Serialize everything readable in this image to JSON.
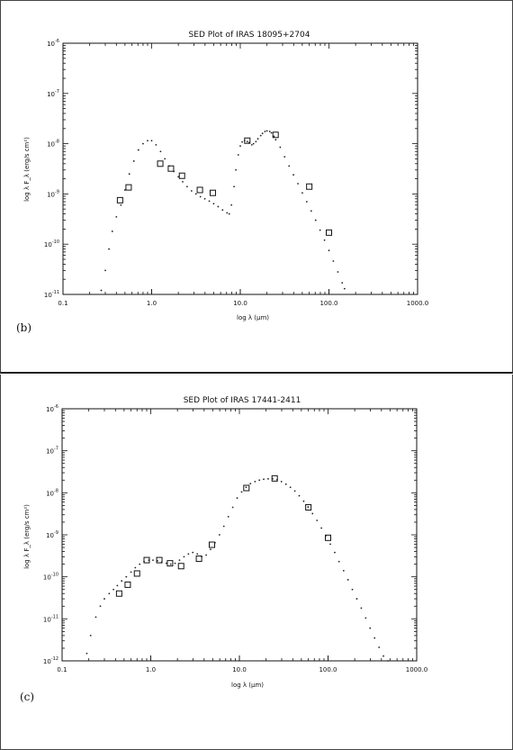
{
  "chart_data": [
    {
      "type": "scatter",
      "panel_label": "(b)",
      "title": "SED Plot of IRAS 18095+2704",
      "xlabel": "log λ (μm)",
      "ylabel": "log λ F_λ (erg/s cm²)",
      "x_scale": "log",
      "y_scale": "log",
      "xlim": [
        0.1,
        1000.0
      ],
      "ylim": [
        1e-11,
        1e-06
      ],
      "x_ticks": [
        {
          "value": 0.1,
          "label": "0.1"
        },
        {
          "value": 1.0,
          "label": "1.0"
        },
        {
          "value": 10.0,
          "label": "10.0"
        },
        {
          "value": 100.0,
          "label": "100.0"
        },
        {
          "value": 1000.0,
          "label": "1000.0"
        }
      ],
      "y_ticks": [
        {
          "value": 1e-11,
          "base": "10",
          "exp": "-11"
        },
        {
          "value": 1e-10,
          "base": "10",
          "exp": "-10"
        },
        {
          "value": 1e-09,
          "base": "10",
          "exp": "-9"
        },
        {
          "value": 1e-08,
          "base": "10",
          "exp": "-8"
        },
        {
          "value": 1e-07,
          "base": "10",
          "exp": "-7"
        },
        {
          "value": 1e-06,
          "base": "10",
          "exp": "-6"
        }
      ],
      "grid": false,
      "series": [
        {
          "marker": "square",
          "x": [
            0.44,
            0.55,
            1.25,
            1.65,
            2.2,
            3.5,
            4.9,
            12,
            25,
            60,
            100
          ],
          "y": [
            7.5e-10,
            1.35e-09,
            4e-09,
            3.2e-09,
            2.3e-09,
            1.2e-09,
            1.05e-09,
            1.15e-08,
            1.5e-08,
            1.4e-09,
            1.7e-10
          ]
        },
        {
          "marker": "dot",
          "x": [
            0.27,
            0.3,
            0.33,
            0.36,
            0.4,
            0.45,
            0.5,
            0.56,
            0.63,
            0.71,
            0.8,
            0.9,
            1.0,
            1.12,
            1.26,
            1.41,
            1.58,
            1.78,
            2.0,
            2.24,
            2.51,
            2.82,
            3.16,
            3.55,
            3.98,
            4.47,
            5.01,
            5.62,
            6.31,
            7.08,
            7.5,
            7.94,
            8.5,
            8.91,
            9.5,
            10.0,
            10.5,
            11.2,
            12.0,
            12.6,
            13.5,
            14.1,
            15.0,
            15.8,
            17.0,
            17.8,
            19.0,
            20.0,
            21.5,
            22.4,
            24.0,
            25.1,
            28.2,
            31.6,
            35.5,
            39.8,
            44.7,
            50.1,
            56.2,
            63.1,
            70.8,
            79.4,
            89.1,
            100,
            112,
            126,
            141,
            150
          ],
          "y": [
            1.2e-11,
            3e-11,
            8e-11,
            1.8e-10,
            3.5e-10,
            6e-10,
            1.2e-09,
            2.5e-09,
            4.5e-09,
            7.5e-09,
            1e-08,
            1.15e-08,
            1.15e-08,
            9.5e-09,
            7e-09,
            5e-09,
            3.6e-09,
            2.8e-09,
            2.2e-09,
            1.75e-09,
            1.4e-09,
            1.15e-09,
            1e-09,
            8.8e-10,
            8e-10,
            7.2e-10,
            6.4e-10,
            5.6e-10,
            4.8e-10,
            4.2e-10,
            4e-10,
            6e-10,
            1.4e-09,
            3e-09,
            6e-09,
            9e-09,
            1.08e-08,
            1.15e-08,
            1.1e-08,
            1.05e-08,
            9.5e-09,
            1e-08,
            1.1e-08,
            1.25e-08,
            1.45e-08,
            1.6e-08,
            1.75e-08,
            1.8e-08,
            1.75e-08,
            1.65e-08,
            1.4e-08,
            1.2e-08,
            8.5e-09,
            5.5e-09,
            3.6e-09,
            2.4e-09,
            1.6e-09,
            1.05e-09,
            7e-10,
            4.6e-10,
            3e-10,
            1.9e-10,
            1.2e-10,
            7.5e-11,
            4.6e-11,
            2.8e-11,
            1.7e-11,
            1.3e-11
          ]
        }
      ]
    },
    {
      "type": "scatter",
      "panel_label": "(c)",
      "title": "SED Plot of IRAS 17441-2411",
      "xlabel": "log λ (μm)",
      "ylabel": "log λ F_λ (erg/s cm²)",
      "x_scale": "log",
      "y_scale": "log",
      "xlim": [
        0.1,
        1000.0
      ],
      "ylim": [
        1e-12,
        1e-06
      ],
      "x_ticks": [
        {
          "value": 0.1,
          "label": "0.1"
        },
        {
          "value": 1.0,
          "label": "1.0"
        },
        {
          "value": 10.0,
          "label": "10.0"
        },
        {
          "value": 100.0,
          "label": "100.0"
        },
        {
          "value": 1000.0,
          "label": "1000.0"
        }
      ],
      "y_ticks": [
        {
          "value": 1e-12,
          "base": "10",
          "exp": "-12"
        },
        {
          "value": 1e-11,
          "base": "10",
          "exp": "-11"
        },
        {
          "value": 1e-10,
          "base": "10",
          "exp": "-10"
        },
        {
          "value": 1e-09,
          "base": "10",
          "exp": "-9"
        },
        {
          "value": 1e-08,
          "base": "10",
          "exp": "-8"
        },
        {
          "value": 1e-07,
          "base": "10",
          "exp": "-7"
        },
        {
          "value": 1e-06,
          "base": "10",
          "exp": "-6"
        }
      ],
      "grid": false,
      "series": [
        {
          "marker": "square",
          "x": [
            0.44,
            0.55,
            0.7,
            0.9,
            1.25,
            1.65,
            2.2,
            3.5,
            4.9,
            12,
            25,
            60,
            100
          ],
          "y": [
            4e-11,
            6.5e-11,
            1.2e-10,
            2.5e-10,
            2.5e-10,
            2.1e-10,
            1.8e-10,
            2.7e-10,
            5.8e-10,
            1.3e-08,
            2.2e-08,
            4.5e-09,
            8.5e-10
          ]
        },
        {
          "marker": "dot",
          "x": [
            0.19,
            0.21,
            0.24,
            0.27,
            0.3,
            0.34,
            0.38,
            0.42,
            0.47,
            0.53,
            0.6,
            0.67,
            0.75,
            0.84,
            0.95,
            1.06,
            1.19,
            1.33,
            1.5,
            1.68,
            1.88,
            2.11,
            2.37,
            2.66,
            2.98,
            3.35,
            3.76,
            4.22,
            4.73,
            5.31,
            5.96,
            6.68,
            7.5,
            8.41,
            9.44,
            10.6,
            11.9,
            13.3,
            15.0,
            16.8,
            18.8,
            21.1,
            23.7,
            26.6,
            29.8,
            33.5,
            37.6,
            42.2,
            47.3,
            53.1,
            59.6,
            66.8,
            75.0,
            84.1,
            94.4,
            106,
            119,
            133,
            150,
            168,
            188,
            211,
            237,
            266,
            298,
            335,
            376,
            422,
            473
          ],
          "y": [
            1.5e-12,
            4e-12,
            1.1e-11,
            2e-11,
            3e-11,
            4e-11,
            5e-11,
            6.2e-11,
            8e-11,
            1e-10,
            1.3e-10,
            1.65e-10,
            2e-10,
            2.3e-10,
            2.5e-10,
            2.5e-10,
            2.4e-10,
            2.25e-10,
            2.1e-10,
            2e-10,
            2.1e-10,
            2.5e-10,
            3e-10,
            3.5e-10,
            3.8e-10,
            3.5e-10,
            3e-10,
            3.3e-10,
            4.5e-10,
            6.5e-10,
            1e-09,
            1.6e-09,
            2.7e-09,
            4.5e-09,
            7.5e-09,
            1.05e-08,
            1.35e-08,
            1.65e-08,
            1.85e-08,
            2e-08,
            2.1e-08,
            2.15e-08,
            2.15e-08,
            2.05e-08,
            1.85e-08,
            1.6e-08,
            1.35e-08,
            1.1e-08,
            8.5e-09,
            6.3e-09,
            4.6e-09,
            3.2e-09,
            2.2e-09,
            1.45e-09,
            9.5e-10,
            6e-10,
            3.8e-10,
            2.3e-10,
            1.4e-10,
            8.5e-11,
            5e-11,
            3e-11,
            1.8e-11,
            1.05e-11,
            6e-12,
            3.5e-12,
            2.1e-12,
            1.3e-12,
            1e-12
          ]
        }
      ]
    }
  ]
}
